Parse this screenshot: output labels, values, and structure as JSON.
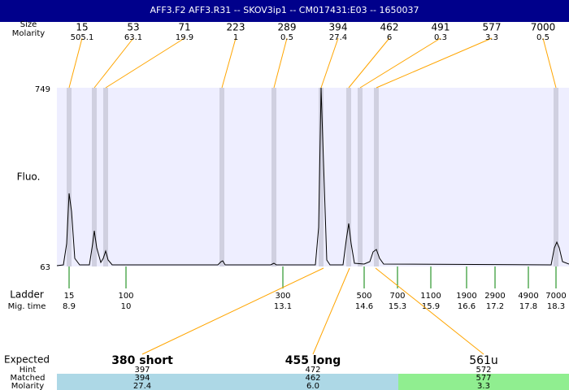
{
  "header": {
    "title": "AFF3.F2  AFF3.R31 -- SKOV3ip1 -- CM017431:E03 -- 1650037"
  },
  "peaks": {
    "size_label": "Size",
    "molarity_label": "Molarity",
    "sizes": [
      "15",
      "53",
      "71",
      "223",
      "289",
      "394",
      "462",
      "491",
      "577",
      "7000"
    ],
    "molarities": [
      "505.1",
      "63.1",
      "19.9",
      "1",
      "0.5",
      "27.4",
      "6",
      "0.3",
      "3.3",
      "0.5"
    ]
  },
  "axis": {
    "label": "Fluo.",
    "max": "749",
    "min": "63"
  },
  "ladder": {
    "label": "Ladder",
    "time_label": "Mig. time",
    "sizes": [
      "15",
      "100",
      "300",
      "500",
      "700",
      "1100",
      "1900",
      "2900",
      "4900",
      "7000"
    ],
    "times": [
      "8.9",
      "10",
      "13.1",
      "14.6",
      "15.3",
      "15.9",
      "16.6",
      "17.2",
      "17.8",
      "18.3"
    ]
  },
  "expected": {
    "label": "Expected",
    "hint_label": "Hint",
    "matched_label": "Matched",
    "molarity_label": "Molarity",
    "columns": [
      {
        "name": "380 short",
        "hint": "397",
        "matched": "394",
        "molarity": "27.4"
      },
      {
        "name": "455 long",
        "hint": "472",
        "matched": "462",
        "molarity": "6.0"
      },
      {
        "name": "561u",
        "hint": "572",
        "matched": "577",
        "molarity": "3.3"
      }
    ]
  }
}
